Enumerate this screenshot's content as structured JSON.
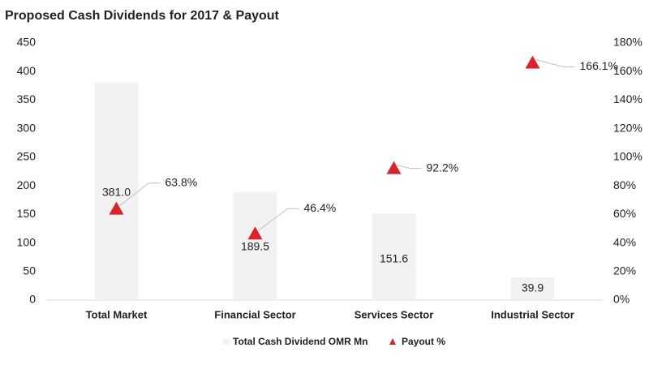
{
  "chart_data": {
    "type": "bar-triangle",
    "title": "Proposed Cash Dividends for 2017 & Payout",
    "categories": [
      "Total Market",
      "Financial Sector",
      "Services Sector",
      "Industrial Sector"
    ],
    "series": [
      {
        "name": "Total Cash Dividend OMR Mn",
        "color": "#f2f2f2",
        "values": [
          381.0,
          189.5,
          151.6,
          39.9
        ],
        "value_labels": [
          "381.0",
          "189.5",
          "151.6",
          "39.9"
        ]
      },
      {
        "name": "Payout %",
        "color": "#d9232d",
        "axis": "y2",
        "values": [
          63.8,
          46.4,
          92.2,
          166.1
        ],
        "value_labels": [
          "63.8%",
          "46.4%",
          "92.2%",
          "166.1%"
        ]
      }
    ],
    "ylim": [
      0,
      450
    ],
    "yticks": [
      0,
      50,
      100,
      150,
      200,
      250,
      300,
      350,
      400,
      450
    ],
    "y2lim": [
      0,
      180
    ],
    "y2ticks": [
      {
        "value": 0,
        "label": "0%"
      },
      {
        "value": 20,
        "label": "20%"
      },
      {
        "value": 40,
        "label": "40%"
      },
      {
        "value": 60,
        "label": "60%"
      },
      {
        "value": 80,
        "label": "80%"
      },
      {
        "value": 100,
        "label": "100%"
      },
      {
        "value": 120,
        "label": "120%"
      },
      {
        "value": 140,
        "label": "140%"
      },
      {
        "value": 160,
        "label": "160%"
      },
      {
        "value": 180,
        "label": "180%"
      }
    ],
    "grid": false
  }
}
